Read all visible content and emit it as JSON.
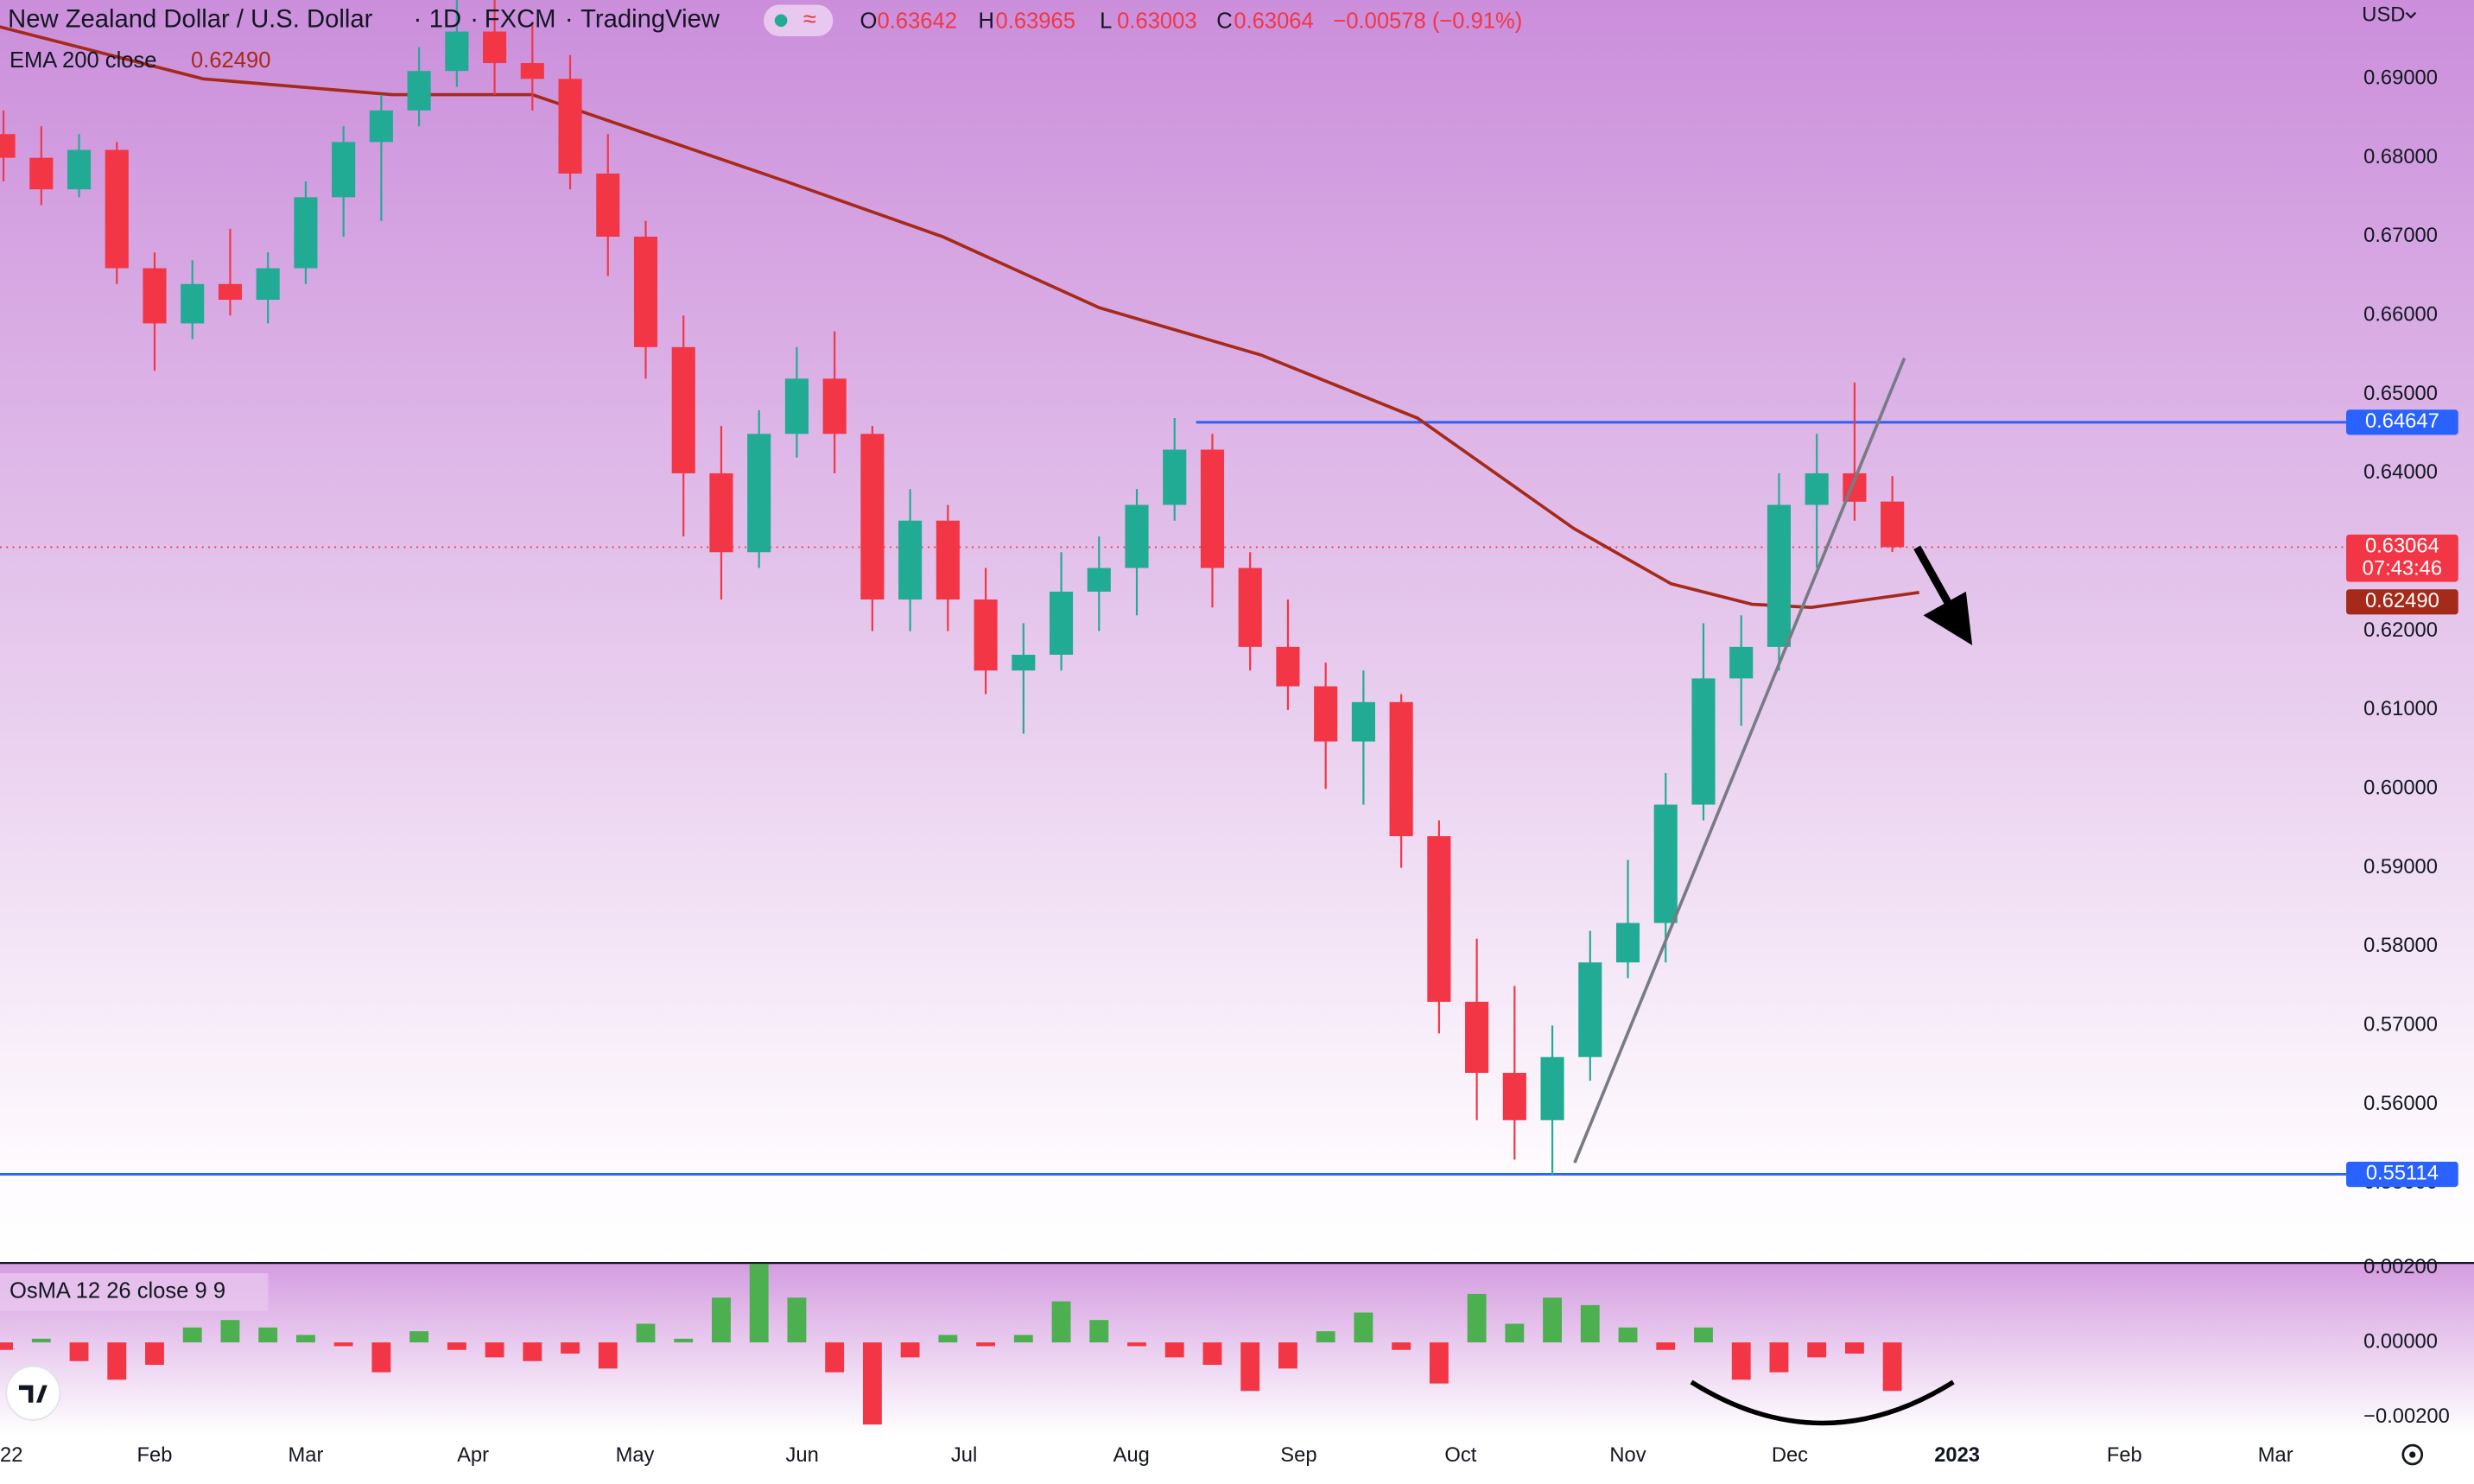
{
  "header": {
    "symbol": "New Zealand Dollar / U.S. Dollar",
    "interval": "1D",
    "source": "FXCM",
    "platform": "TradingView",
    "ohlc": [
      {
        "key": "O",
        "value": "0.63642"
      },
      {
        "key": "H",
        "value": "0.63965"
      },
      {
        "key": "L",
        "value": "0.63003"
      },
      {
        "key": "C",
        "value": "0.63064"
      }
    ],
    "change": "−0.00578 (−0.91%)",
    "currency": "USD"
  },
  "chart_data": [
    {
      "type": "candlestick",
      "x": [
        3,
        10,
        17,
        24,
        31,
        38,
        45,
        52,
        59,
        66,
        73,
        80,
        87,
        94,
        101,
        108,
        115,
        122,
        129,
        136,
        143,
        150,
        157,
        164,
        171,
        178,
        185,
        192,
        199,
        206,
        213,
        220,
        227,
        234,
        241,
        248,
        255,
        262,
        269,
        276,
        283,
        290,
        297,
        304,
        311,
        318,
        325,
        332,
        339,
        346,
        353
      ],
      "open": [
        0.683,
        0.68,
        0.676,
        0.681,
        0.666,
        0.659,
        0.664,
        0.662,
        0.666,
        0.675,
        0.682,
        0.686,
        0.691,
        0.696,
        0.692,
        0.69,
        0.678,
        0.67,
        0.656,
        0.64,
        0.63,
        0.645,
        0.652,
        0.645,
        0.624,
        0.634,
        0.624,
        0.615,
        0.617,
        0.625,
        0.628,
        0.636,
        0.643,
        0.628,
        0.618,
        0.613,
        0.606,
        0.611,
        0.594,
        0.573,
        0.564,
        0.558,
        0.566,
        0.578,
        0.583,
        0.598,
        0.614,
        0.618,
        0.636,
        0.64,
        0.63642
      ],
      "high": [
        0.686,
        0.684,
        0.683,
        0.682,
        0.668,
        0.667,
        0.671,
        0.668,
        0.677,
        0.684,
        0.688,
        0.694,
        0.702,
        0.7,
        0.697,
        0.693,
        0.683,
        0.672,
        0.66,
        0.646,
        0.648,
        0.656,
        0.658,
        0.646,
        0.638,
        0.636,
        0.628,
        0.621,
        0.63,
        0.632,
        0.638,
        0.647,
        0.645,
        0.63,
        0.624,
        0.616,
        0.615,
        0.612,
        0.596,
        0.581,
        0.575,
        0.57,
        0.582,
        0.591,
        0.602,
        0.621,
        0.622,
        0.64,
        0.645,
        0.6515,
        0.63965
      ],
      "low": [
        0.677,
        0.674,
        0.675,
        0.664,
        0.653,
        0.657,
        0.66,
        0.659,
        0.664,
        0.67,
        0.672,
        0.684,
        0.689,
        0.688,
        0.686,
        0.676,
        0.665,
        0.652,
        0.632,
        0.624,
        0.628,
        0.642,
        0.64,
        0.62,
        0.62,
        0.62,
        0.612,
        0.607,
        0.615,
        0.62,
        0.622,
        0.634,
        0.623,
        0.615,
        0.61,
        0.6,
        0.598,
        0.59,
        0.569,
        0.558,
        0.553,
        0.551,
        0.563,
        0.576,
        0.578,
        0.596,
        0.608,
        0.615,
        0.628,
        0.634,
        0.63003
      ],
      "close": [
        0.68,
        0.676,
        0.681,
        0.666,
        0.659,
        0.664,
        0.662,
        0.666,
        0.675,
        0.682,
        0.686,
        0.691,
        0.696,
        0.692,
        0.69,
        0.678,
        0.67,
        0.656,
        0.64,
        0.63,
        0.645,
        0.652,
        0.645,
        0.624,
        0.634,
        0.624,
        0.615,
        0.617,
        0.625,
        0.628,
        0.636,
        0.643,
        0.628,
        0.618,
        0.613,
        0.606,
        0.611,
        0.594,
        0.573,
        0.564,
        0.558,
        0.566,
        0.578,
        0.583,
        0.598,
        0.614,
        0.618,
        0.636,
        0.64,
        0.6364,
        0.63064
      ],
      "up_color": "#22ab94",
      "down_color": "#f23645",
      "xlim": [
        2.35,
        437.1
      ],
      "ylim": [
        0.54,
        0.7
      ],
      "xticks": [
        {
          "value": 0,
          "label": "22"
        },
        {
          "value": 31,
          "label": "Feb"
        },
        {
          "value": 59,
          "label": "Mar"
        },
        {
          "value": 90,
          "label": "Apr"
        },
        {
          "value": 120,
          "label": "May"
        },
        {
          "value": 151,
          "label": "Jun"
        },
        {
          "value": 181,
          "label": "Jul"
        },
        {
          "value": 212,
          "label": "Aug"
        },
        {
          "value": 243,
          "label": "Sep"
        },
        {
          "value": 273,
          "label": "Oct"
        },
        {
          "value": 304,
          "label": "Nov"
        },
        {
          "value": 334,
          "label": "Dec"
        },
        {
          "value": 365,
          "label": "2023"
        },
        {
          "value": 396,
          "label": "Feb"
        },
        {
          "value": 424,
          "label": "Mar"
        }
      ],
      "yticks": [
        {
          "value": 0.55,
          "label": "0.55000"
        },
        {
          "value": 0.56,
          "label": "0.56000"
        },
        {
          "value": 0.57,
          "label": "0.57000"
        },
        {
          "value": 0.58,
          "label": "0.58000"
        },
        {
          "value": 0.59,
          "label": "0.59000"
        },
        {
          "value": 0.6,
          "label": "0.60000"
        },
        {
          "value": 0.61,
          "label": "0.61000"
        },
        {
          "value": 0.62,
          "label": "0.62000"
        },
        {
          "value": 0.63,
          "label": "0.63000"
        },
        {
          "value": 0.64,
          "label": "0.64000"
        },
        {
          "value": 0.65,
          "label": "0.65000"
        },
        {
          "value": 0.66,
          "label": "0.66000"
        },
        {
          "value": 0.67,
          "label": "0.67000"
        },
        {
          "value": 0.68,
          "label": "0.68000"
        },
        {
          "value": 0.69,
          "label": "0.69000"
        }
      ],
      "overlays": [
        {
          "type": "line",
          "name": "EMA 200 close",
          "color": "#a52a1a",
          "x": [
            0,
            40,
            75,
            101,
            148,
            177,
            206,
            236,
            265,
            294,
            312,
            327,
            338,
            358
          ],
          "values": [
            0.697,
            0.69,
            0.688,
            0.688,
            0.677,
            0.67,
            0.661,
            0.655,
            0.647,
            0.633,
            0.626,
            0.6234,
            0.623,
            0.6249
          ],
          "last": {
            "value": 0.6249,
            "label": "0.62490"
          }
        }
      ],
      "hlines": [
        {
          "value": 0.64647,
          "label": "0.64647",
          "start": 224,
          "color": "#2962ff"
        },
        {
          "value": 0.55114,
          "label": "0.55114",
          "color": "#2962ff"
        }
      ],
      "last_price": {
        "value": 0.63064,
        "label": "0.63064",
        "countdown": "07:43:46",
        "color": "#f23645"
      }
    },
    {
      "type": "bar",
      "title": "OsMA 12 26 close 9 9",
      "x": [
        3,
        10,
        17,
        24,
        31,
        38,
        45,
        52,
        59,
        66,
        73,
        80,
        87,
        94,
        101,
        108,
        115,
        122,
        129,
        136,
        143,
        150,
        157,
        164,
        171,
        178,
        185,
        192,
        199,
        206,
        213,
        220,
        227,
        234,
        241,
        248,
        255,
        262,
        269,
        276,
        283,
        290,
        297,
        304,
        311,
        318,
        325,
        332,
        339,
        346,
        353
      ],
      "values": [
        -0.0002,
        0.0001,
        -0.0005,
        -0.001,
        -0.0006,
        0.0004,
        0.0006,
        0.0004,
        0.0002,
        -0.0001,
        -0.0008,
        0.0003,
        -0.0002,
        -0.0004,
        -0.0005,
        -0.0003,
        -0.0007,
        0.0005,
        0.0001,
        0.0012,
        0.0021,
        0.0012,
        -0.0008,
        -0.0022,
        -0.0004,
        0.0002,
        -0.0001,
        0.0002,
        0.0011,
        0.0006,
        -0.0001,
        -0.0004,
        -0.0006,
        -0.0013,
        -0.0007,
        0.0003,
        0.0008,
        -0.0002,
        -0.0011,
        0.0013,
        0.0005,
        0.0012,
        0.001,
        0.0004,
        -0.0002,
        0.0004,
        -0.001,
        -0.0008,
        -0.0004,
        -0.0003,
        -0.0013
      ],
      "positive_color": "#4caf50",
      "negative_color": "#f23645",
      "xlim": [
        2.35,
        437.1
      ],
      "ylim": [
        -0.0025,
        0.00215
      ],
      "yticks": [
        {
          "value": 0.002,
          "label": "0.00200"
        },
        {
          "value": 0,
          "label": "0.00000"
        },
        {
          "value": -0.002,
          "label": "−0.00200"
        }
      ]
    }
  ]
}
